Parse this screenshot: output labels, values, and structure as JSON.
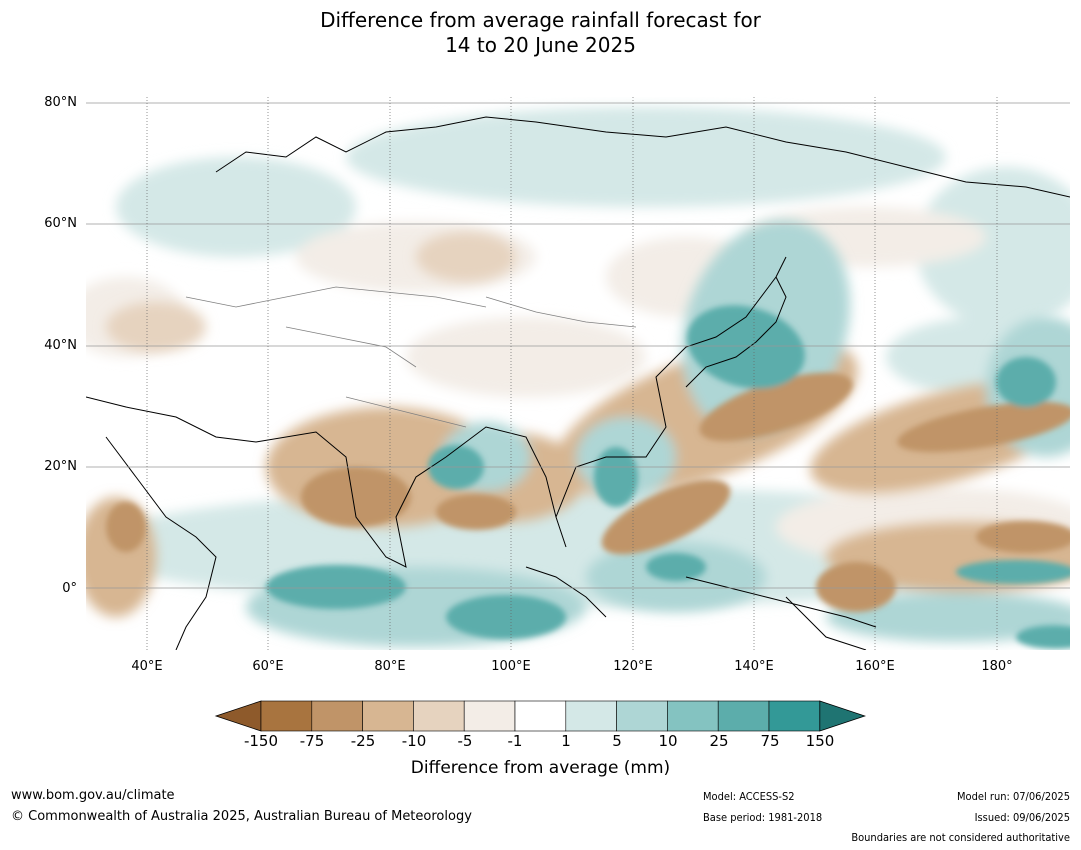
{
  "title_line1": "Difference from average rainfall forecast for",
  "title_line2": "14 to 20 June 2025",
  "map": {
    "lat_labels": [
      "80°N",
      "60°N",
      "40°N",
      "20°N",
      "0°"
    ],
    "lon_labels": [
      "40°E",
      "60°E",
      "80°E",
      "100°E",
      "120°E",
      "140°E",
      "160°E",
      "180°"
    ],
    "extent": {
      "lon_min": 30,
      "lon_max": 192,
      "lat_min": -10,
      "lat_max": 81
    }
  },
  "legend": {
    "title": "Difference from average (mm)",
    "ticks": [
      "-150",
      "-75",
      "-25",
      "-10",
      "-5",
      "-1",
      "1",
      "5",
      "10",
      "25",
      "75",
      "150"
    ],
    "colors": [
      "#8e5a2b",
      "#a8743f",
      "#c09468",
      "#d7b692",
      "#e6d3bf",
      "#f3ede7",
      "#ffffff",
      "#d4e8e7",
      "#aed6d5",
      "#84c3c1",
      "#5cadab",
      "#339997",
      "#1f7472"
    ]
  },
  "footer": {
    "website": "www.bom.gov.au/climate",
    "copyright": "© Commonwealth of Australia 2025, Australian Bureau of Meteorology",
    "model": "Model: ACCESS-S2",
    "base_period": "Base period: 1981-2018",
    "model_run": "Model run: 07/06/2025",
    "issued": "Issued: 09/06/2025",
    "disclaimer": "Boundaries are not considered authoritative"
  }
}
